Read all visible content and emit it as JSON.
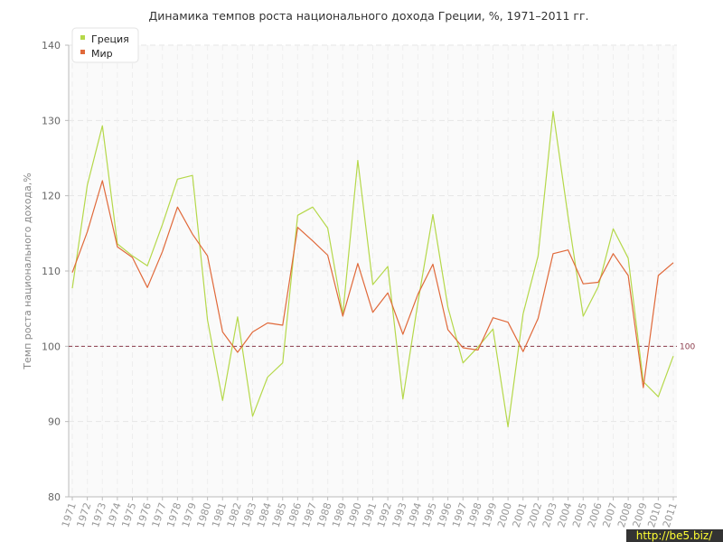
{
  "chart_data": {
    "type": "line",
    "title": "Динамика темпов роста национального дохода Греции, %, 1971–2011 гг.",
    "ylabel": "Темп роста национального дохода,%",
    "xlabel": "",
    "ylim": [
      80,
      140
    ],
    "yticks": [
      80,
      90,
      100,
      110,
      120,
      130,
      140
    ],
    "grid": true,
    "legend_position": "top-left",
    "reference_line": {
      "value": 100,
      "label": "100",
      "color": "#8b3a4a"
    },
    "x": [
      "1971",
      "1972",
      "1973",
      "1974",
      "1975",
      "1976",
      "1977",
      "1978",
      "1979",
      "1980",
      "1981",
      "1982",
      "1983",
      "1984",
      "1985",
      "1986",
      "1987",
      "1988",
      "1989",
      "1990",
      "1991",
      "1992",
      "1993",
      "1994",
      "1995",
      "1996",
      "1997",
      "1998",
      "1999",
      "2000",
      "2001",
      "2002",
      "2003",
      "2004",
      "2005",
      "2006",
      "2007",
      "2008",
      "2009",
      "2010",
      "2011"
    ],
    "series": [
      {
        "name": "Греция",
        "color": "#b5d84a",
        "values": [
          107.7,
          121.4,
          129.3,
          113.6,
          112.0,
          110.7,
          116.2,
          122.2,
          122.7,
          103.5,
          92.8,
          103.9,
          90.7,
          95.9,
          97.8,
          117.4,
          118.5,
          115.7,
          104.2,
          124.7,
          108.2,
          110.6,
          93.0,
          105.8,
          117.5,
          105.2,
          97.8,
          99.9,
          102.3,
          89.3,
          104.3,
          112.0,
          131.2,
          117.2,
          104.0,
          107.9,
          115.6,
          111.7,
          95.3,
          93.3,
          98.7
        ]
      },
      {
        "name": "Мир",
        "color": "#e0693a",
        "values": [
          109.8,
          115.2,
          122.0,
          113.2,
          111.8,
          107.8,
          112.6,
          118.5,
          114.9,
          112.0,
          101.9,
          99.2,
          101.9,
          103.1,
          102.8,
          115.8,
          114.0,
          112.1,
          104.0,
          111.0,
          104.5,
          107.1,
          101.6,
          106.9,
          110.9,
          102.2,
          99.8,
          99.5,
          103.8,
          103.2,
          99.3,
          103.7,
          112.3,
          112.8,
          108.3,
          108.5,
          112.3,
          109.4,
          94.5,
          109.4,
          111.1
        ]
      }
    ]
  },
  "watermark": "http://be5.biz/"
}
